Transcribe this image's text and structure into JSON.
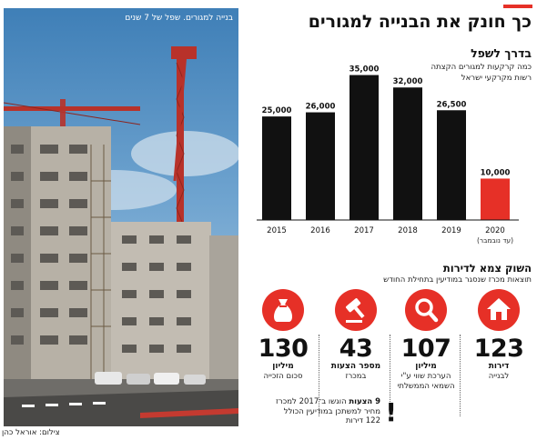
{
  "headline": "כך חונק את הבנייה למגורים",
  "photo": {
    "caption": "בנייה למגורים. שפל של 7 שנים",
    "credit": "צילום: אוראל כהן"
  },
  "chart_data": {
    "type": "bar",
    "title": "בדרך לשפל",
    "subtitle_lines": [
      "כמה קרקעות למגורים הקצתה",
      "רשות מקרקעי ישראל"
    ],
    "categories": [
      "2015",
      "2016",
      "2017",
      "2018",
      "2019",
      "2020"
    ],
    "category_notes": [
      "",
      "",
      "",
      "",
      "",
      "(עד נובמבר)"
    ],
    "values": [
      25000,
      26000,
      35000,
      32000,
      26500,
      10000
    ],
    "value_labels": [
      "25,000",
      "26,000",
      "35,000",
      "32,000",
      "26,500",
      "10,000"
    ],
    "bar_colors": [
      "#111111",
      "#111111",
      "#111111",
      "#111111",
      "#111111",
      "#e63027"
    ],
    "ylim": [
      0,
      36000
    ],
    "xlabel": "",
    "ylabel": "",
    "grid": false,
    "legend": "none"
  },
  "market": {
    "title": "השוק צמא לדירות",
    "subtitle": "תוצאות מכרז שנסגר במודיעין בתחילת החודש",
    "stats": [
      {
        "icon": "house-icon",
        "number": "123",
        "unit": "דירות",
        "desc": "לבנייה"
      },
      {
        "icon": "magnifier-icon",
        "number": "107",
        "unit": "מיליון",
        "desc": "הערכת שווי ע\"י השמאי הממשלתי"
      },
      {
        "icon": "gavel-icon",
        "number": "43",
        "unit": "מספר הצעות",
        "desc": "במכרז"
      },
      {
        "icon": "money-bag-icon",
        "number": "130",
        "unit": "מיליון",
        "desc": "סכום הזכייה"
      }
    ],
    "note": {
      "bold": "9 הצעות",
      "text": " הוגשו ב־2017 למכרז מחיר למשתכן במודיעין הכולל 122 דירות"
    }
  },
  "colors": {
    "accent": "#e63027",
    "bars": "#111111"
  }
}
